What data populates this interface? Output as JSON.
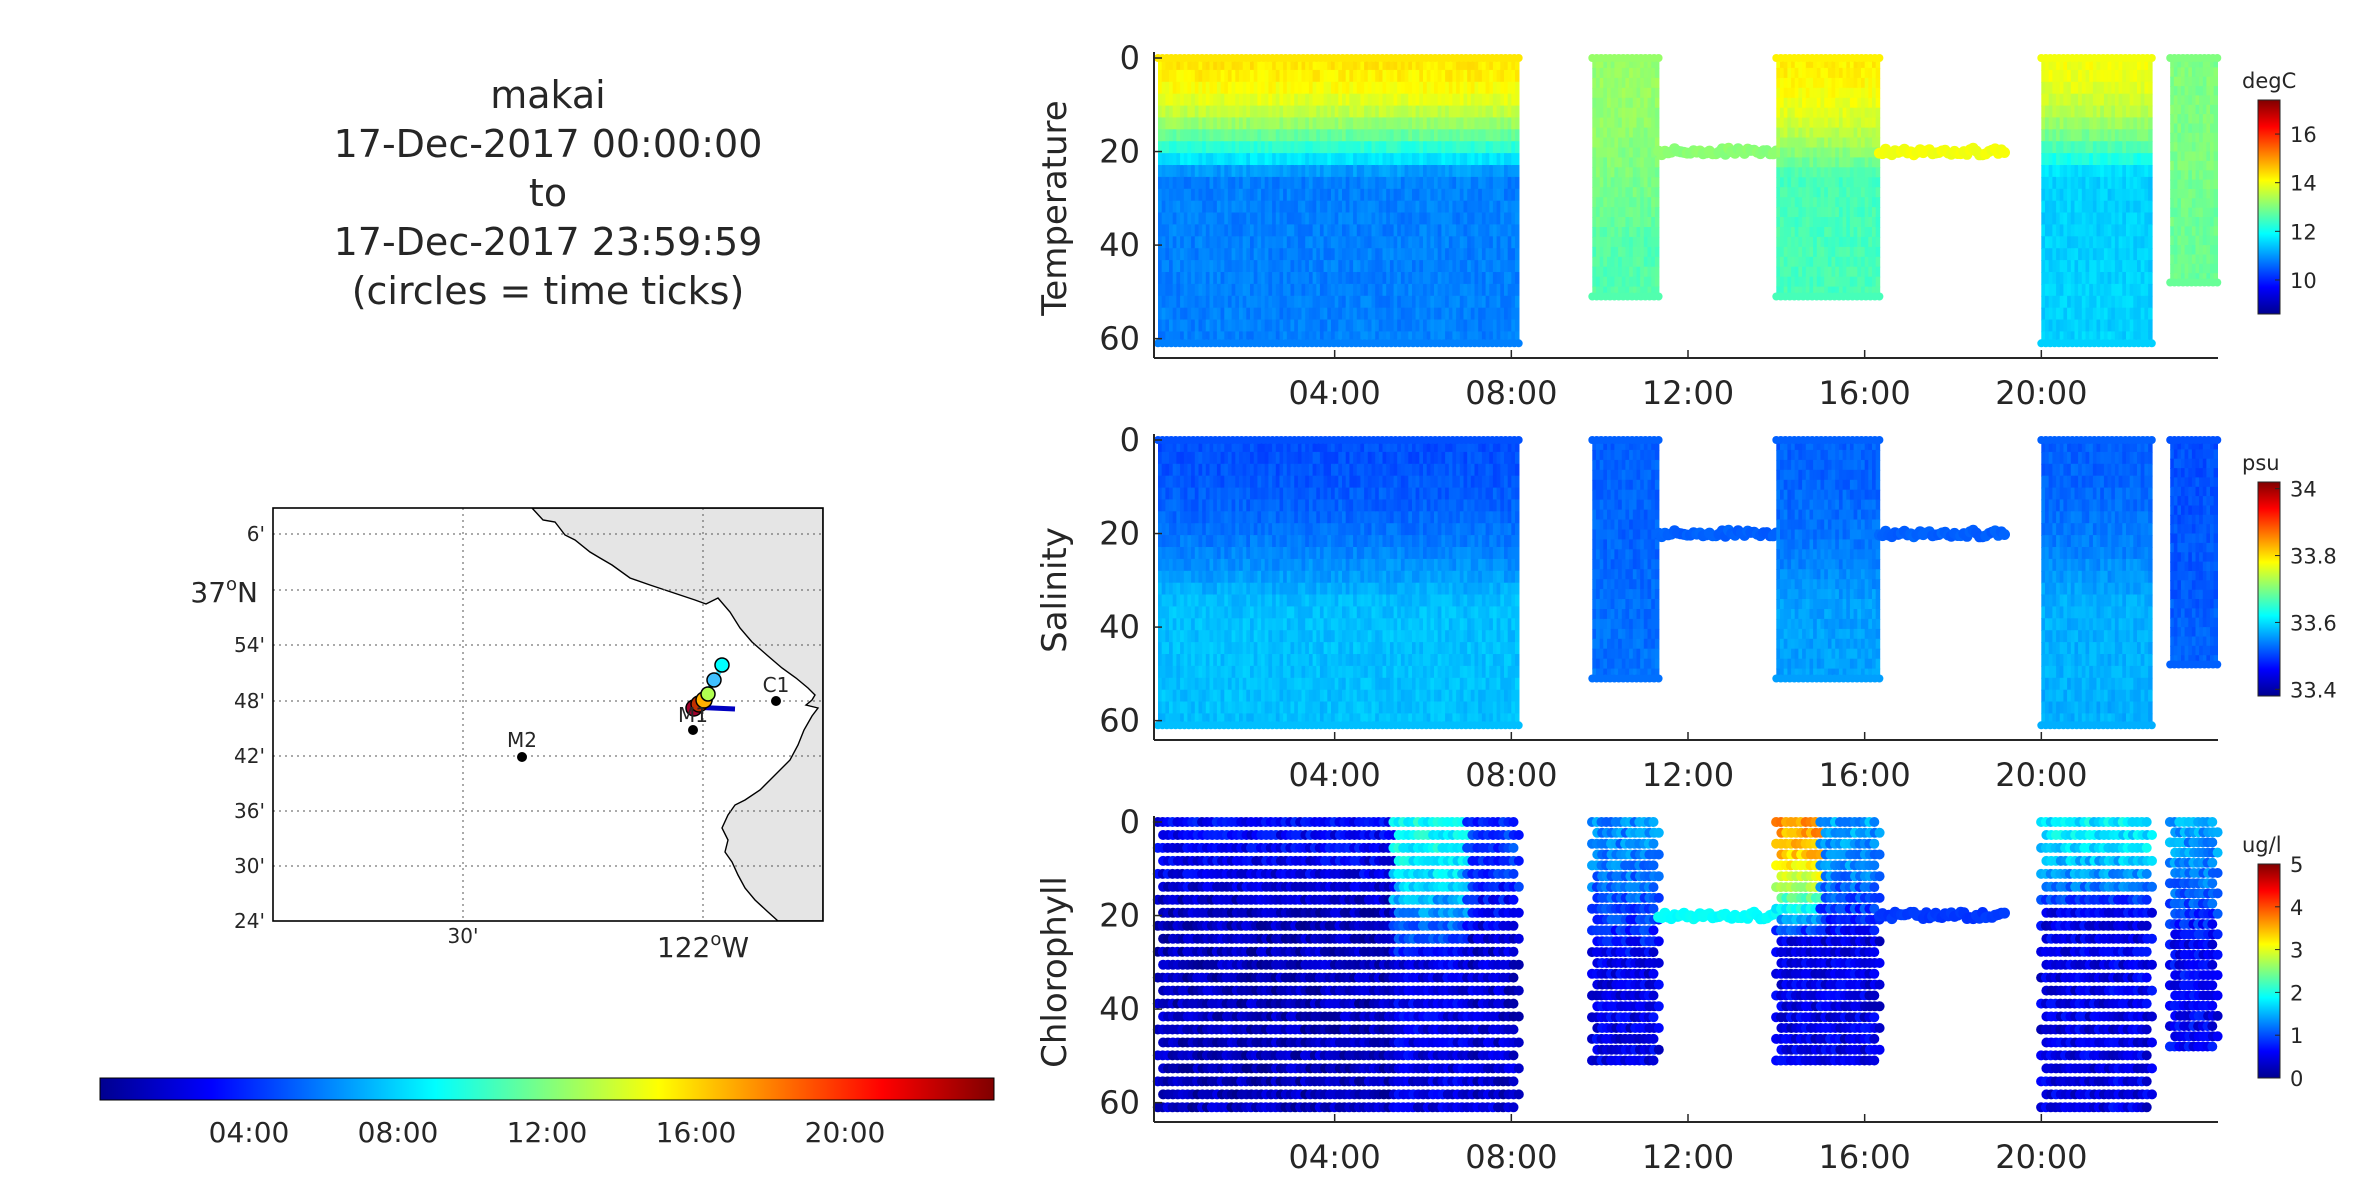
{
  "title": {
    "lines": [
      "makai",
      "17-Dec-2017 00:00:00",
      "to",
      "17-Dec-2017 23:59:59",
      "(circles = time ticks)"
    ]
  },
  "map": {
    "lat_ticks": [
      "6'",
      "37°N",
      "54'",
      "48'",
      "42'",
      "36'",
      "30'",
      "24'"
    ],
    "lat_main_label": "37",
    "lat_main_suffix": "N",
    "lon_ticks": [
      "30'",
      "122°W"
    ],
    "lon_main_label": "122",
    "lon_main_suffix": "W",
    "stations": [
      "M2",
      "M1",
      "C1"
    ],
    "land_color": "#e5e5e5"
  },
  "time_colorbar": {
    "ticks": [
      "04:00",
      "08:00",
      "12:00",
      "16:00",
      "20:00"
    ],
    "colormap": "jet"
  },
  "chart_data": [
    {
      "type": "heatmap",
      "title": "",
      "ylabel": "Temperature",
      "xlabel": "",
      "x_ticks": [
        "04:00",
        "08:00",
        "12:00",
        "16:00",
        "20:00"
      ],
      "y_ticks": [
        "0",
        "20",
        "40",
        "60"
      ],
      "ylim": [
        0,
        62
      ],
      "y_reversed": true,
      "colorbar": {
        "unit": "degC",
        "ticks": [
          "10",
          "12",
          "14",
          "16"
        ],
        "range": [
          8.6,
          17.4
        ]
      },
      "segments": [
        {
          "start": "00:00",
          "end": "08:10",
          "depth_max": 61,
          "surface": 14.3,
          "thermo": 25,
          "deep": 10.8
        },
        {
          "start": "09:50",
          "end": "11:20",
          "depth_max": 51,
          "surface": 13.2,
          "thermo": 40,
          "deep": 12.6
        },
        {
          "start": "11:20",
          "end": "14:00",
          "depth_max": 20,
          "parked": true,
          "surface": 13.1,
          "thermo": 40,
          "deep": 13.1
        },
        {
          "start": "14:00",
          "end": "16:20",
          "depth_max": 51,
          "surface": 14.2,
          "thermo": 25,
          "deep": 12.5
        },
        {
          "start": "16:20",
          "end": "19:10",
          "depth_max": 20,
          "parked": true,
          "surface": 14.0,
          "thermo": 40,
          "deep": 14.0
        },
        {
          "start": "20:00",
          "end": "22:30",
          "depth_max": 61,
          "surface": 14.0,
          "thermo": 25,
          "deep": 11.5
        },
        {
          "start": "22:55",
          "end": "23:59",
          "depth_max": 48,
          "surface": 13.0,
          "thermo": 40,
          "deep": 12.8
        }
      ]
    },
    {
      "type": "heatmap",
      "title": "",
      "ylabel": "Salinity",
      "xlabel": "",
      "x_ticks": [
        "04:00",
        "08:00",
        "12:00",
        "16:00",
        "20:00"
      ],
      "y_ticks": [
        "0",
        "20",
        "40",
        "60"
      ],
      "ylim": [
        0,
        62
      ],
      "y_reversed": true,
      "colorbar": {
        "unit": "psu",
        "ticks": [
          "33.4",
          "33.6",
          "33.8",
          "34"
        ],
        "range": [
          33.38,
          34.02
        ]
      },
      "segments": [
        {
          "start": "00:00",
          "end": "08:10",
          "depth_max": 61,
          "surface": 33.51,
          "thermo": 35,
          "deep": 33.58
        },
        {
          "start": "09:50",
          "end": "11:20",
          "depth_max": 51,
          "surface": 33.52,
          "thermo": 40,
          "deep": 33.53
        },
        {
          "start": "11:20",
          "end": "14:00",
          "depth_max": 20,
          "parked": true,
          "surface": 33.52,
          "thermo": 40,
          "deep": 33.52
        },
        {
          "start": "14:00",
          "end": "16:20",
          "depth_max": 51,
          "surface": 33.52,
          "thermo": 35,
          "deep": 33.56
        },
        {
          "start": "16:20",
          "end": "19:10",
          "depth_max": 20,
          "parked": true,
          "surface": 33.52,
          "thermo": 40,
          "deep": 33.52
        },
        {
          "start": "20:00",
          "end": "22:30",
          "depth_max": 61,
          "surface": 33.52,
          "thermo": 35,
          "deep": 33.57
        },
        {
          "start": "22:55",
          "end": "23:59",
          "depth_max": 48,
          "surface": 33.51,
          "thermo": 40,
          "deep": 33.52
        }
      ]
    },
    {
      "type": "scatter",
      "title": "",
      "ylabel": "Chlorophyll",
      "xlabel": "",
      "x_ticks": [
        "04:00",
        "08:00",
        "12:00",
        "16:00",
        "20:00"
      ],
      "y_ticks": [
        "0",
        "20",
        "40",
        "60"
      ],
      "ylim": [
        0,
        62
      ],
      "y_reversed": true,
      "colorbar": {
        "unit": "ug/l",
        "ticks": [
          "0",
          "1",
          "2",
          "3",
          "4",
          "5"
        ],
        "range": [
          0,
          5
        ]
      },
      "segments": [
        {
          "start": "00:00",
          "end": "05:20",
          "depth_max": 61,
          "surface": 0.6,
          "thermo": 20,
          "deep": 0.3
        },
        {
          "start": "05:20",
          "end": "07:00",
          "depth_max": 61,
          "surface": 1.9,
          "thermo": 30,
          "deep": 0.5
        },
        {
          "start": "07:00",
          "end": "08:10",
          "depth_max": 61,
          "surface": 0.9,
          "thermo": 25,
          "deep": 0.4
        },
        {
          "start": "09:50",
          "end": "11:20",
          "depth_max": 51,
          "surface": 1.3,
          "thermo": 30,
          "deep": 0.5
        },
        {
          "start": "11:20",
          "end": "14:00",
          "depth_max": 20,
          "parked": true,
          "surface": 1.9,
          "thermo": 40,
          "deep": 1.9
        },
        {
          "start": "14:00",
          "end": "15:00",
          "depth_max": 51,
          "surface": 3.6,
          "thermo": 25,
          "deep": 0.5
        },
        {
          "start": "15:00",
          "end": "16:20",
          "depth_max": 51,
          "surface": 1.4,
          "thermo": 25,
          "deep": 0.5
        },
        {
          "start": "16:20",
          "end": "19:10",
          "depth_max": 20,
          "parked": true,
          "surface": 0.9,
          "thermo": 40,
          "deep": 0.9
        },
        {
          "start": "20:00",
          "end": "22:30",
          "depth_max": 61,
          "surface": 1.8,
          "thermo": 20,
          "deep": 0.5
        },
        {
          "start": "22:55",
          "end": "23:59",
          "depth_max": 48,
          "surface": 1.4,
          "thermo": 25,
          "deep": 0.6
        }
      ]
    }
  ]
}
